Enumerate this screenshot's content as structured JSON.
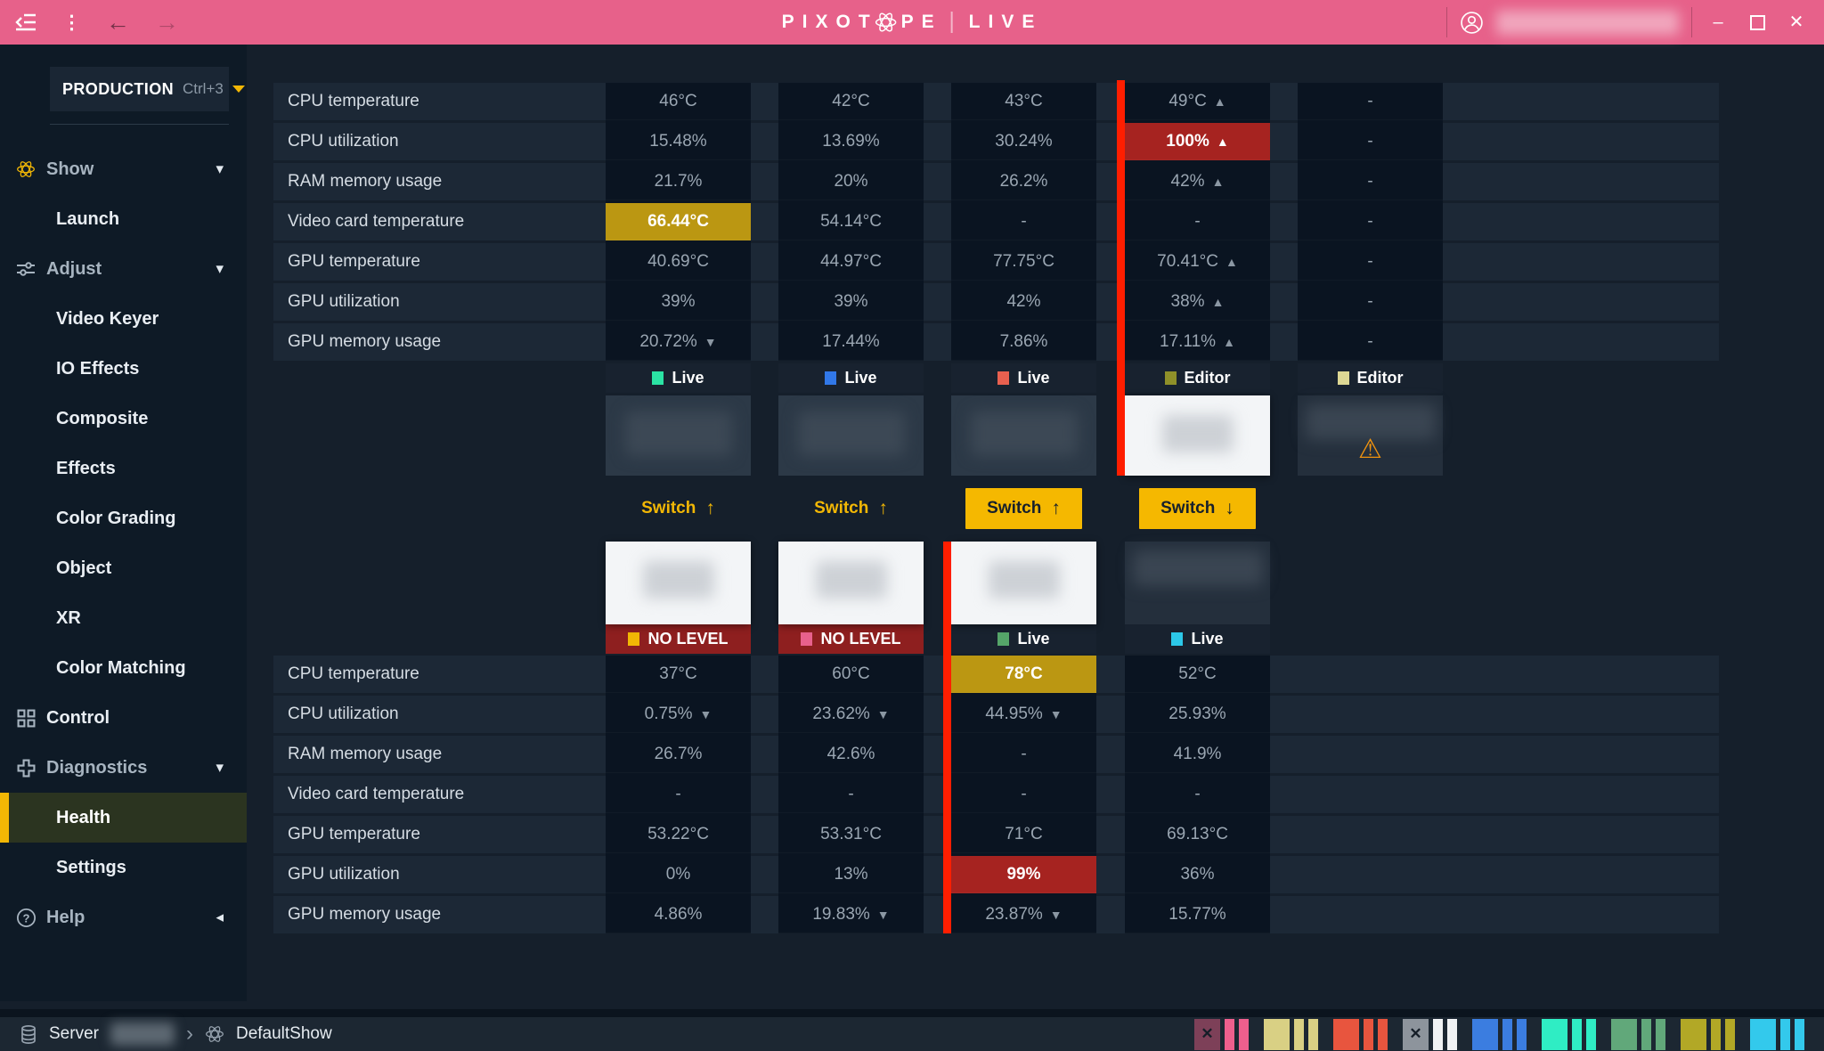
{
  "titlebar": {
    "logo": {
      "part1": "PIXOT",
      "part2": "PE",
      "product": "LIVE"
    }
  },
  "icons": {
    "kebab": "⋮",
    "back": "←",
    "forward": "→",
    "minimize": "–",
    "close": "✕",
    "breadcrumb_chevron": "›",
    "trend_up": "▲",
    "trend_down": "▼",
    "warning": "⚠",
    "nav_chevron_down": "▾",
    "nav_chevron_left": "◂",
    "arrow_up": "↑",
    "arrow_down": "↓"
  },
  "colors": {
    "accent_pink": "#e7618a",
    "accent_yellow": "#f2b705",
    "warn_gold": "#bb9712",
    "alert_red": "#a62320",
    "live_alert_bar": "#ff1e00"
  },
  "sidebar": {
    "production": {
      "label": "PRODUCTION",
      "shortcut": "Ctrl+3"
    },
    "items": [
      {
        "label": "Show",
        "kind": "section",
        "icon": "atom",
        "icon_color": "#f2b705",
        "chevron": "down"
      },
      {
        "label": "Launch",
        "kind": "sub"
      },
      {
        "label": "Adjust",
        "kind": "section",
        "icon": "sliders",
        "chevron": "down"
      },
      {
        "label": "Video Keyer",
        "kind": "sub"
      },
      {
        "label": "IO Effects",
        "kind": "sub"
      },
      {
        "label": "Composite",
        "kind": "sub"
      },
      {
        "label": "Effects",
        "kind": "sub"
      },
      {
        "label": "Color Grading",
        "kind": "sub"
      },
      {
        "label": "Object",
        "kind": "sub"
      },
      {
        "label": "XR",
        "kind": "sub"
      },
      {
        "label": "Color Matching",
        "kind": "sub"
      },
      {
        "label": "Control",
        "kind": "section",
        "icon": "grid",
        "bright": true
      },
      {
        "label": "Diagnostics",
        "kind": "section",
        "icon": "cross",
        "chevron": "down"
      },
      {
        "label": "Health",
        "kind": "sub",
        "active": true
      },
      {
        "label": "Settings",
        "kind": "sub"
      },
      {
        "label": "Help",
        "kind": "section",
        "icon": "help",
        "chevron": "left"
      }
    ]
  },
  "board": {
    "metric_labels": [
      "CPU temperature",
      "CPU utilization",
      "RAM memory usage",
      "Video card temperature",
      "GPU temperature",
      "GPU utilization",
      "GPU memory usage"
    ],
    "top_machines": [
      {
        "panel": "dark",
        "name_redacted": true,
        "status": {
          "label": "Live",
          "color": "#2be3a4",
          "alert": false
        },
        "switch": {
          "label": "Switch",
          "direction": "up",
          "filled": false
        },
        "values": [
          {
            "text": "46°C"
          },
          {
            "text": "15.48%"
          },
          {
            "text": "21.7%"
          },
          {
            "text": "66.44°C",
            "highlight": "gold"
          },
          {
            "text": "40.69°C"
          },
          {
            "text": "39%"
          },
          {
            "text": "20.72%",
            "trend": "down"
          }
        ]
      },
      {
        "panel": "dark",
        "name_redacted": true,
        "status": {
          "label": "Live",
          "color": "#3178e8",
          "alert": false
        },
        "switch": {
          "label": "Switch",
          "direction": "up",
          "filled": false
        },
        "values": [
          {
            "text": "42°C"
          },
          {
            "text": "13.69%"
          },
          {
            "text": "20%"
          },
          {
            "text": "54.14°C"
          },
          {
            "text": "44.97°C"
          },
          {
            "text": "39%"
          },
          {
            "text": "17.44%"
          }
        ]
      },
      {
        "panel": "dark",
        "name_redacted": true,
        "status": {
          "label": "Live",
          "color": "#e8604f",
          "alert": false
        },
        "switch": {
          "label": "Switch",
          "direction": "up",
          "filled": true
        },
        "values": [
          {
            "text": "43°C"
          },
          {
            "text": "30.24%"
          },
          {
            "text": "26.2%"
          },
          {
            "text": "-"
          },
          {
            "text": "77.75°C"
          },
          {
            "text": "42%"
          },
          {
            "text": "7.86%"
          }
        ]
      },
      {
        "panel": "white",
        "name_redacted": true,
        "alert_bar": true,
        "status": {
          "label": "Editor",
          "color": "#8f9029",
          "alert": false
        },
        "switch": {
          "label": "Switch",
          "direction": "down",
          "filled": true
        },
        "values": [
          {
            "text": "49°C",
            "trend": "up"
          },
          {
            "text": "100%",
            "trend": "up",
            "highlight": "red"
          },
          {
            "text": "42%",
            "trend": "up"
          },
          {
            "text": "-"
          },
          {
            "text": "70.41°C",
            "trend": "up"
          },
          {
            "text": "38%",
            "trend": "up"
          },
          {
            "text": "17.11%",
            "trend": "up"
          }
        ]
      },
      {
        "panel": "slate",
        "name_redacted": true,
        "warning": true,
        "status": {
          "label": "Editor",
          "color": "#ddd794",
          "alert": false
        },
        "values": [
          {
            "text": "-"
          },
          {
            "text": "-"
          },
          {
            "text": "-"
          },
          {
            "text": "-"
          },
          {
            "text": "-"
          },
          {
            "text": "-"
          },
          {
            "text": "-"
          }
        ]
      }
    ],
    "bottom_machines": [
      {
        "panel": "white",
        "name_redacted": true,
        "status": {
          "label": "NO LEVEL",
          "color": "#f2b705",
          "alert": true
        },
        "values": [
          {
            "text": "37°C"
          },
          {
            "text": "0.75%",
            "trend": "down"
          },
          {
            "text": "26.7%"
          },
          {
            "text": "-"
          },
          {
            "text": "53.22°C"
          },
          {
            "text": "0%"
          },
          {
            "text": "4.86%"
          }
        ]
      },
      {
        "panel": "white",
        "name_redacted": true,
        "status": {
          "label": "NO LEVEL",
          "color": "#e8618c",
          "alert": true
        },
        "values": [
          {
            "text": "60°C"
          },
          {
            "text": "23.62%",
            "trend": "down"
          },
          {
            "text": "42.6%"
          },
          {
            "text": "-"
          },
          {
            "text": "53.31°C"
          },
          {
            "text": "13%"
          },
          {
            "text": "19.83%",
            "trend": "down"
          }
        ]
      },
      {
        "panel": "white",
        "name_redacted": true,
        "alert_bar": true,
        "status": {
          "label": "Live",
          "color": "#55a569",
          "alert": false
        },
        "values": [
          {
            "text": "78°C",
            "highlight": "gold"
          },
          {
            "text": "44.95%",
            "trend": "down"
          },
          {
            "text": "-"
          },
          {
            "text": "-"
          },
          {
            "text": "71°C"
          },
          {
            "text": "99%",
            "highlight": "red"
          },
          {
            "text": "23.87%",
            "trend": "down"
          }
        ]
      },
      {
        "panel": "slate",
        "name_redacted": true,
        "status": {
          "label": "Live",
          "color": "#2cc8e8",
          "alert": false
        },
        "values": [
          {
            "text": "52°C"
          },
          {
            "text": "25.93%"
          },
          {
            "text": "41.9%"
          },
          {
            "text": "-"
          },
          {
            "text": "69.13°C"
          },
          {
            "text": "36%"
          },
          {
            "text": "15.77%"
          }
        ]
      }
    ]
  },
  "statusbar": {
    "server_label": "Server",
    "show_name": "DefaultShow",
    "indicators": [
      {
        "square": "#7d4058",
        "bars": "#ee5f8d",
        "x": true
      },
      {
        "square": "#d9d084",
        "bars": "#d9d084"
      },
      {
        "square": "#e8553e",
        "bars": "#e8553e"
      },
      {
        "square": "#8d949c",
        "bars": "#f0f2f4",
        "x": true
      },
      {
        "square": "#3b7de0",
        "bars": "#3b7de0"
      },
      {
        "square": "#2fedc4",
        "bars": "#2fedc4"
      },
      {
        "square": "#61a87a",
        "bars": "#61a87a"
      },
      {
        "square": "#b2a826",
        "bars": "#b2a826"
      },
      {
        "square": "#33c9ec",
        "bars": "#33c9ec"
      }
    ]
  }
}
